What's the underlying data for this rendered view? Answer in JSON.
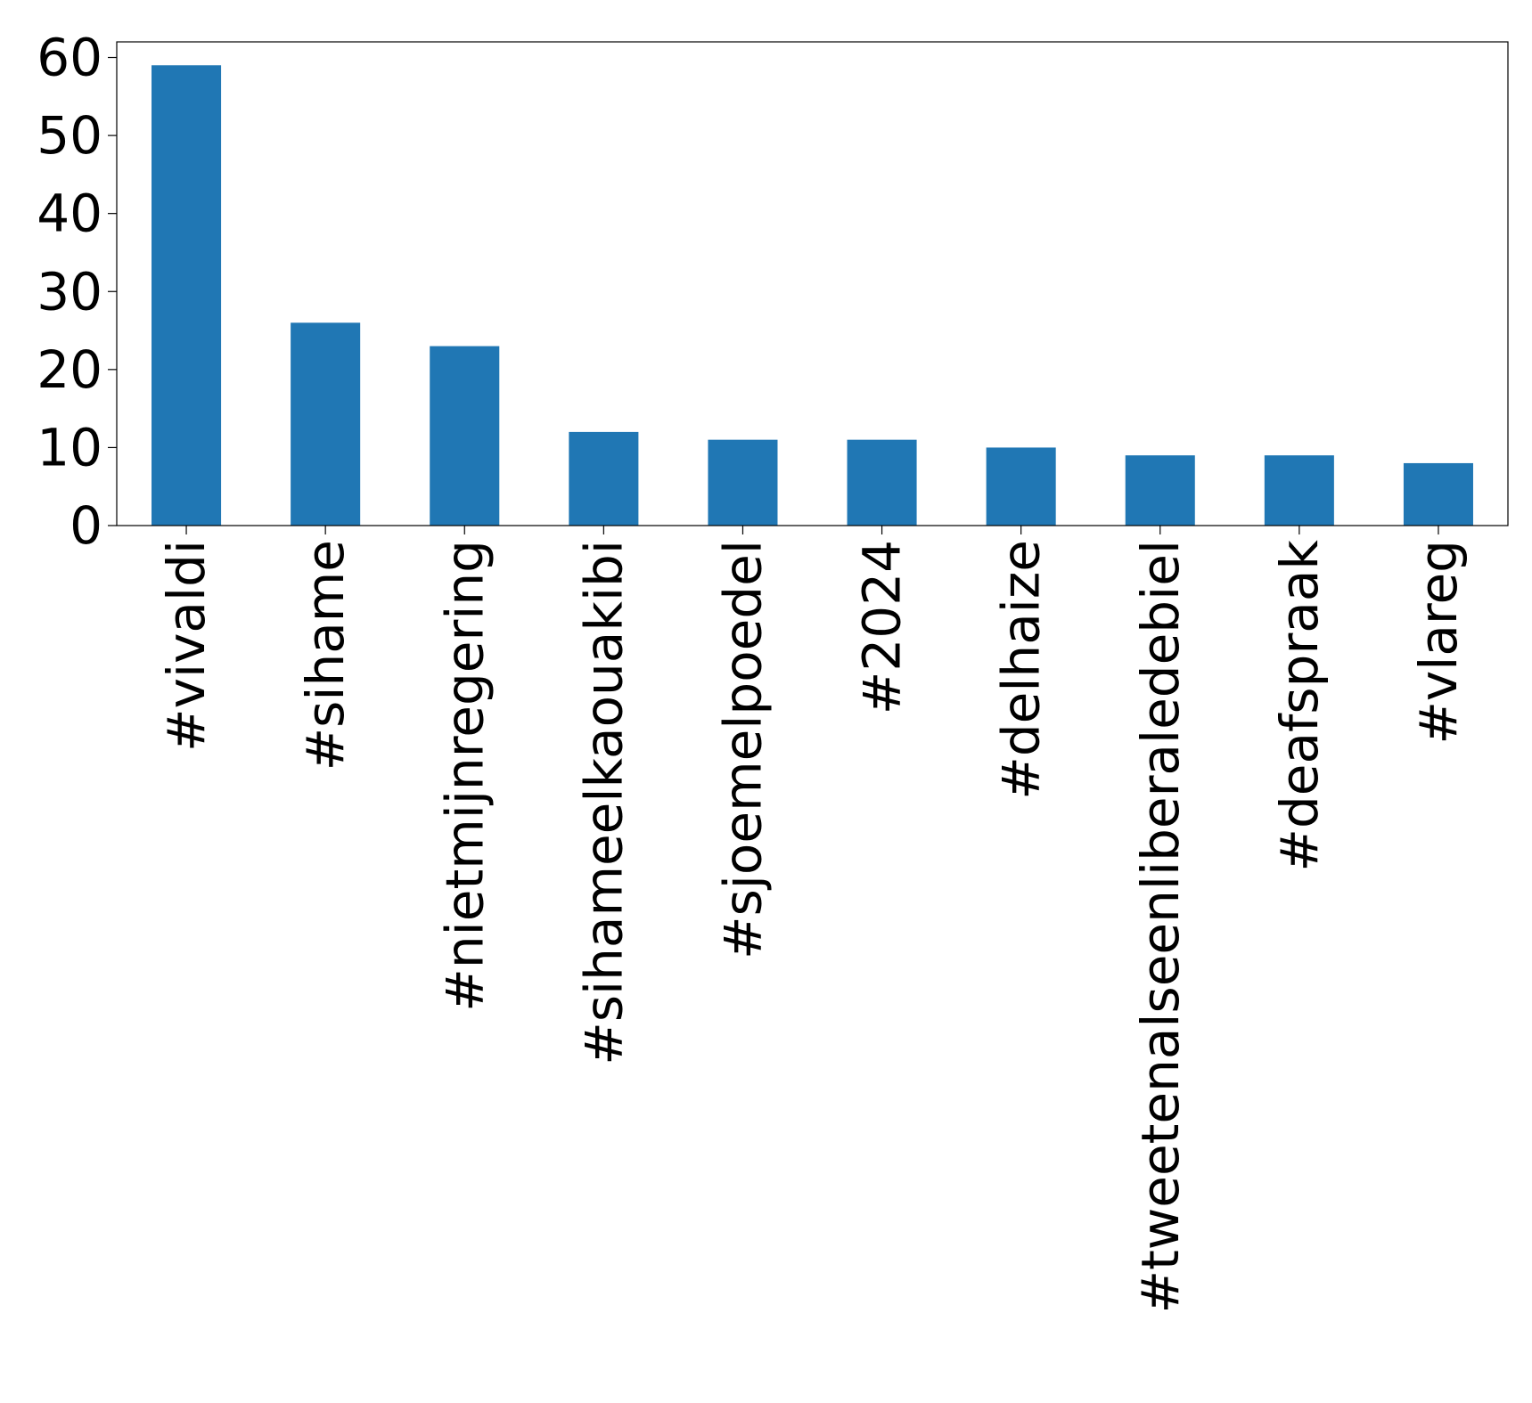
{
  "chart_data": {
    "type": "bar",
    "title": "",
    "xlabel": "",
    "ylabel": "",
    "categories": [
      "#vivaldi",
      "#sihame",
      "#nietmijnregering",
      "#sihameelkaouakibi",
      "#sjoemelpoedel",
      "#2024",
      "#delhaize",
      "#tweetenalseenliberaledebiel",
      "#deafspraak",
      "#vlareg"
    ],
    "values": [
      59,
      26,
      23,
      12,
      11,
      11,
      10,
      9,
      9,
      8
    ],
    "ylim": [
      0,
      62
    ],
    "yticks": [
      0,
      10,
      20,
      30,
      40,
      50,
      60
    ],
    "grid": false,
    "legend": "none",
    "bar_color": "#2077b4"
  }
}
